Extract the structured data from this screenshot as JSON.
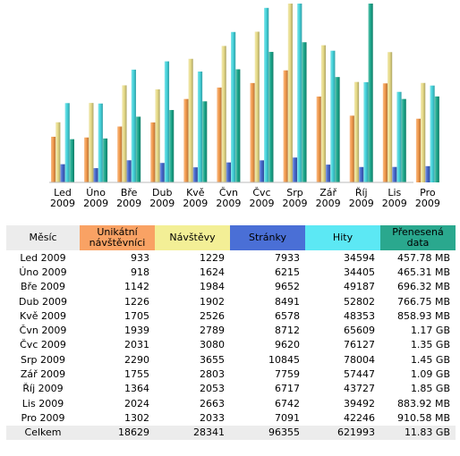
{
  "chart_data": {
    "type": "bar",
    "categories": [
      [
        "Led",
        "2009"
      ],
      [
        "Úno",
        "2009"
      ],
      [
        "Bře",
        "2009"
      ],
      [
        "Dub",
        "2009"
      ],
      [
        "Kvě",
        "2009"
      ],
      [
        "Čvn",
        "2009"
      ],
      [
        "Čvc",
        "2009"
      ],
      [
        "Srp",
        "2009"
      ],
      [
        "Zář",
        "2009"
      ],
      [
        "Říj",
        "2009"
      ],
      [
        "Lis",
        "2009"
      ],
      [
        "Pro",
        "2009"
      ]
    ],
    "series": [
      {
        "name": "Unikátní návštěvníci",
        "color": "#f39a4c",
        "values": [
          933,
          918,
          1142,
          1226,
          1705,
          1939,
          2031,
          2290,
          1755,
          1364,
          2024,
          1302
        ]
      },
      {
        "name": "Návštěvy",
        "color": "#e8dc88",
        "values": [
          1229,
          1624,
          1984,
          1902,
          2526,
          2789,
          3080,
          3655,
          2803,
          2053,
          2663,
          2033
        ]
      },
      {
        "name": "Stránky",
        "color": "#4466cc",
        "values": [
          7933,
          6215,
          9652,
          8491,
          6578,
          8712,
          9620,
          10845,
          7759,
          6717,
          6742,
          7091
        ]
      },
      {
        "name": "Hity",
        "color": "#44d4dc",
        "values": [
          34594,
          34405,
          49187,
          52802,
          48353,
          65609,
          76127,
          78004,
          57447,
          43727,
          39492,
          42246
        ]
      },
      {
        "name": "Přenesená data",
        "color": "#1aa88c",
        "values": [
          "457.78 MB",
          "465.31 MB",
          "696.32 MB",
          "766.75 MB",
          "858.93 MB",
          "1.17 GB",
          "1.35 GB",
          "1.45 GB",
          "1.09 GB",
          "1.85 GB",
          "883.92 MB",
          "910.58 MB"
        ]
      }
    ],
    "group_scale": [
      {
        "name": "Unikátní návštěvníci + Návštěvy",
        "series": [
          0,
          1
        ],
        "max": 3655
      },
      {
        "name": "Stránky + Hity",
        "series": [
          2,
          3
        ],
        "max": 78004
      },
      {
        "name": "Přenesená data",
        "series": [
          4
        ],
        "max_mb": 1894.4
      }
    ],
    "data_mb": [
      457.78,
      465.31,
      696.32,
      766.75,
      858.93,
      1198.08,
      1382.4,
      1484.8,
      1116.16,
      1894.4,
      883.92,
      910.58
    ]
  },
  "table": {
    "headers": {
      "month": "Měsíc",
      "unique": [
        "Unikátní",
        "návštěvníci"
      ],
      "visits": "Návštěvy",
      "pages": "Stránky",
      "hits": "Hity",
      "data": [
        "Přenesená",
        "data"
      ]
    },
    "header_colors": {
      "month": "#ececec",
      "unique": "#f9a264",
      "visits": "#f3ef96",
      "pages": "#4a6fd6",
      "hits": "#5ce8f4",
      "data": "#2aa88e"
    },
    "rows": [
      [
        "Led 2009",
        "933",
        "1229",
        "7933",
        "34594",
        "457.78 MB"
      ],
      [
        "Úno 2009",
        "918",
        "1624",
        "6215",
        "34405",
        "465.31 MB"
      ],
      [
        "Bře 2009",
        "1142",
        "1984",
        "9652",
        "49187",
        "696.32 MB"
      ],
      [
        "Dub 2009",
        "1226",
        "1902",
        "8491",
        "52802",
        "766.75 MB"
      ],
      [
        "Kvě 2009",
        "1705",
        "2526",
        "6578",
        "48353",
        "858.93 MB"
      ],
      [
        "Čvn 2009",
        "1939",
        "2789",
        "8712",
        "65609",
        "1.17 GB"
      ],
      [
        "Čvc 2009",
        "2031",
        "3080",
        "9620",
        "76127",
        "1.35 GB"
      ],
      [
        "Srp 2009",
        "2290",
        "3655",
        "10845",
        "78004",
        "1.45 GB"
      ],
      [
        "Zář 2009",
        "1755",
        "2803",
        "7759",
        "57447",
        "1.09 GB"
      ],
      [
        "Říj 2009",
        "1364",
        "2053",
        "6717",
        "43727",
        "1.85 GB"
      ],
      [
        "Lis 2009",
        "2024",
        "2663",
        "6742",
        "39492",
        "883.92 MB"
      ],
      [
        "Pro 2009",
        "1302",
        "2033",
        "7091",
        "42246",
        "910.58 MB"
      ]
    ],
    "total": [
      "Celkem",
      "18629",
      "28341",
      "96355",
      "621993",
      "11.83 GB"
    ]
  }
}
